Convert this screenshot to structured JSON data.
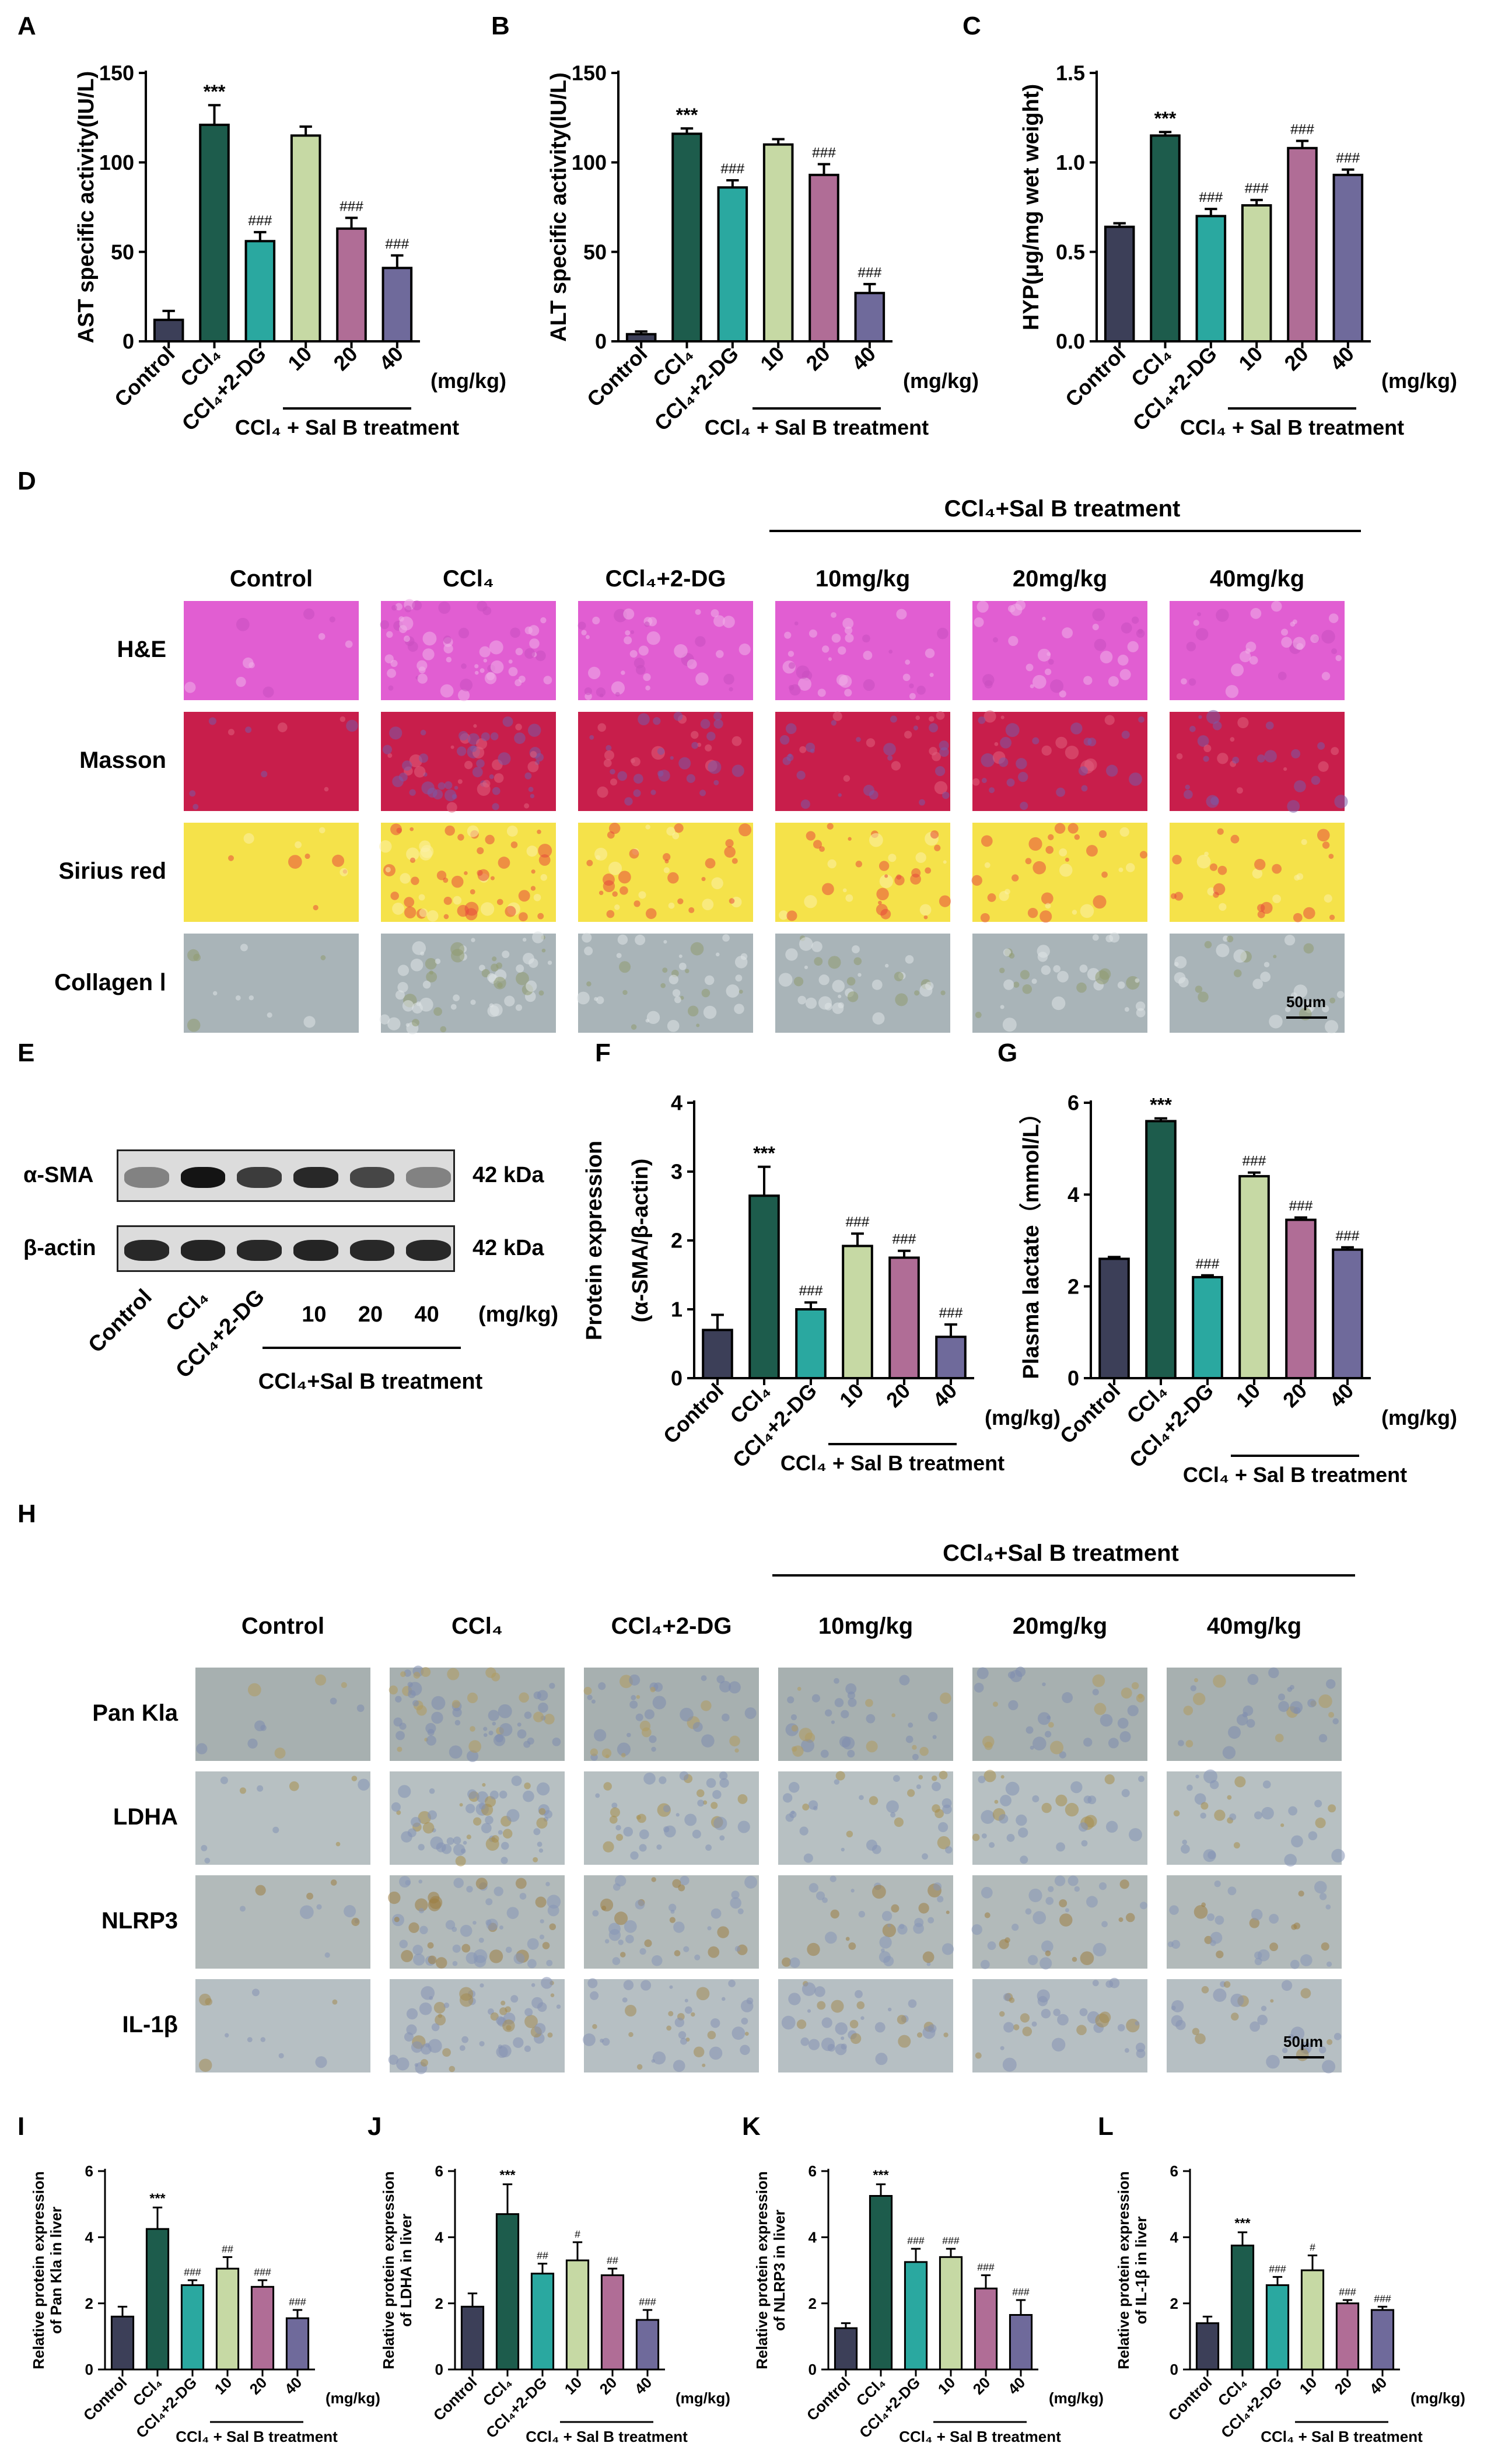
{
  "panel_letters": [
    "A",
    "B",
    "C",
    "D",
    "E",
    "F",
    "G",
    "H",
    "I",
    "J",
    "K",
    "L"
  ],
  "colors": {
    "control": "#3c3f58",
    "ccl4": "#1d5c4c",
    "ccl4_2dg": "#2aa8a0",
    "dose10": "#c6d9a4",
    "dose20": "#b06d96",
    "dose40": "#6f6a9b"
  },
  "groups": {
    "control": "Control",
    "ccl4": "CCl₄",
    "ccl4_2dg": "CCl₄+2-DG",
    "doses": [
      "10",
      "20",
      "40"
    ],
    "unit": "(mg/kg)",
    "treatment": "CCl₄ + Sal B treatment",
    "treatment_compact": "CCl₄+Sal B treatment"
  },
  "histology_d": {
    "columns": [
      "Control",
      "CCl₄",
      "CCl₄+2-DG",
      "10mg/kg",
      "20mg/kg",
      "40mg/kg"
    ],
    "header": "CCl₄+Sal B treatment",
    "rows": [
      "H&E",
      "Masson",
      "Sirius red",
      "Collagen Ⅰ"
    ],
    "scale": "50μm"
  },
  "histology_h": {
    "columns": [
      "Control",
      "CCl₄",
      "CCl₄+2-DG",
      "10mg/kg",
      "20mg/kg",
      "40mg/kg"
    ],
    "header": "CCl₄+Sal B treatment",
    "rows": [
      "Pan Kla",
      "LDHA",
      "NLRP3",
      "IL-1β"
    ],
    "scale": "50μm"
  },
  "western_e": {
    "rows": [
      "α-SMA",
      "β-actin"
    ],
    "sizes": [
      "42 kDa",
      "42 kDa"
    ],
    "lanes": [
      "Control",
      "CCl₄",
      "CCl₄+2-DG",
      "10",
      "20",
      "40"
    ],
    "unit": "(mg/kg)",
    "treatment": "CCl₄+Sal B treatment"
  },
  "chart_data": [
    {
      "panel": "A",
      "type": "bar",
      "ylabel": "AST specific activity(IU/L)",
      "ylim": [
        0,
        150
      ],
      "yticks": [
        0,
        50,
        100,
        150
      ],
      "categories": [
        "Control",
        "CCl₄",
        "CCl₄+2-DG",
        "10",
        "20",
        "40"
      ],
      "values": [
        12,
        121,
        56,
        115,
        63,
        41
      ],
      "errors": [
        5,
        11,
        5,
        5,
        6,
        7
      ],
      "annotations": [
        "",
        "***",
        "###",
        "",
        "###",
        "###"
      ]
    },
    {
      "panel": "B",
      "type": "bar",
      "ylabel": "ALT specific activity(IU/L)",
      "ylim": [
        0,
        150
      ],
      "yticks": [
        0,
        50,
        100,
        150
      ],
      "categories": [
        "Control",
        "CCl₄",
        "CCl₄+2-DG",
        "10",
        "20",
        "40"
      ],
      "values": [
        4,
        116,
        86,
        110,
        93,
        27
      ],
      "errors": [
        1.5,
        3,
        4,
        3,
        6,
        5
      ],
      "annotations": [
        "",
        "***",
        "###",
        "",
        "###",
        "###"
      ]
    },
    {
      "panel": "C",
      "type": "bar",
      "ylabel": "HYP(μg/mg wet weight)",
      "ylim": [
        0,
        1.5
      ],
      "yticks": [
        0.0,
        0.5,
        1.0,
        1.5
      ],
      "tick_decimals": 1,
      "categories": [
        "Control",
        "CCl₄",
        "CCl₄+2-DG",
        "10",
        "20",
        "40"
      ],
      "values": [
        0.64,
        1.15,
        0.7,
        0.76,
        1.08,
        0.93
      ],
      "errors": [
        0.02,
        0.02,
        0.04,
        0.03,
        0.04,
        0.03
      ],
      "annotations": [
        "",
        "***",
        "###",
        "###",
        "###",
        "###"
      ]
    },
    {
      "panel": "F",
      "type": "bar",
      "ylabel": "Protein expression",
      "ylabel2": "(α-SMA/β-actin)",
      "ylim": [
        0,
        4
      ],
      "yticks": [
        0,
        1,
        2,
        3,
        4
      ],
      "categories": [
        "Control",
        "CCl₄",
        "CCl₄+2-DG",
        "10",
        "20",
        "40"
      ],
      "values": [
        0.7,
        2.65,
        1.0,
        1.92,
        1.75,
        0.6
      ],
      "errors": [
        0.22,
        0.42,
        0.1,
        0.18,
        0.1,
        0.18
      ],
      "annotations": [
        "",
        "***",
        "###",
        "###",
        "###",
        "###"
      ]
    },
    {
      "panel": "G",
      "type": "bar",
      "ylabel": "Plasma lactate（mmol/L）",
      "ylim": [
        0,
        6
      ],
      "yticks": [
        0,
        2,
        4,
        6
      ],
      "categories": [
        "Control",
        "CCl₄",
        "CCl₄+2-DG",
        "10",
        "20",
        "40"
      ],
      "values": [
        2.6,
        5.6,
        2.2,
        4.4,
        3.45,
        2.8
      ],
      "errors": [
        0.04,
        0.06,
        0.04,
        0.08,
        0.05,
        0.05
      ],
      "annotations": [
        "",
        "***",
        "###",
        "###",
        "###",
        "###"
      ]
    },
    {
      "panel": "I",
      "type": "bar",
      "ylabel": "Relative protein expression",
      "ylabel2": "of Pan Kla in liver",
      "ylim": [
        0,
        6
      ],
      "yticks": [
        0,
        2,
        4,
        6
      ],
      "categories": [
        "Control",
        "CCl₄",
        "CCl₄+2-DG",
        "10",
        "20",
        "40"
      ],
      "values": [
        1.6,
        4.25,
        2.55,
        3.05,
        2.5,
        1.55
      ],
      "errors": [
        0.3,
        0.65,
        0.15,
        0.35,
        0.2,
        0.25
      ],
      "annotations": [
        "",
        "***",
        "###",
        "##",
        "###",
        "###"
      ]
    },
    {
      "panel": "J",
      "type": "bar",
      "ylabel": "Relative protein expression",
      "ylabel2": "of LDHA in liver",
      "ylim": [
        0,
        6
      ],
      "yticks": [
        0,
        2,
        4,
        6
      ],
      "categories": [
        "Control",
        "CCl₄",
        "CCl₄+2-DG",
        "10",
        "20",
        "40"
      ],
      "values": [
        1.9,
        4.7,
        2.9,
        3.3,
        2.85,
        1.5
      ],
      "errors": [
        0.4,
        0.9,
        0.3,
        0.55,
        0.2,
        0.3
      ],
      "annotations": [
        "",
        "***",
        "##",
        "#",
        "##",
        "###"
      ]
    },
    {
      "panel": "K",
      "type": "bar",
      "ylabel": "Relative protein expression",
      "ylabel2": "of NLRP3 in liver",
      "ylim": [
        0,
        6
      ],
      "yticks": [
        0,
        2,
        4,
        6
      ],
      "categories": [
        "Control",
        "CCl₄",
        "CCl₄+2-DG",
        "10",
        "20",
        "40"
      ],
      "values": [
        1.25,
        5.25,
        3.25,
        3.4,
        2.45,
        1.65
      ],
      "errors": [
        0.15,
        0.35,
        0.4,
        0.25,
        0.4,
        0.45
      ],
      "annotations": [
        "",
        "***",
        "###",
        "###",
        "###",
        "###"
      ]
    },
    {
      "panel": "L",
      "type": "bar",
      "ylabel": "Relative protein expression",
      "ylabel2": "of IL-1β in liver",
      "ylim": [
        0,
        6
      ],
      "yticks": [
        0,
        2,
        4,
        6
      ],
      "categories": [
        "Control",
        "CCl₄",
        "CCl₄+2-DG",
        "10",
        "20",
        "40"
      ],
      "values": [
        1.4,
        3.75,
        2.55,
        3.0,
        2.0,
        1.8
      ],
      "errors": [
        0.2,
        0.4,
        0.25,
        0.45,
        0.1,
        0.1
      ],
      "annotations": [
        "",
        "***",
        "###",
        "#",
        "###",
        "###"
      ]
    }
  ]
}
